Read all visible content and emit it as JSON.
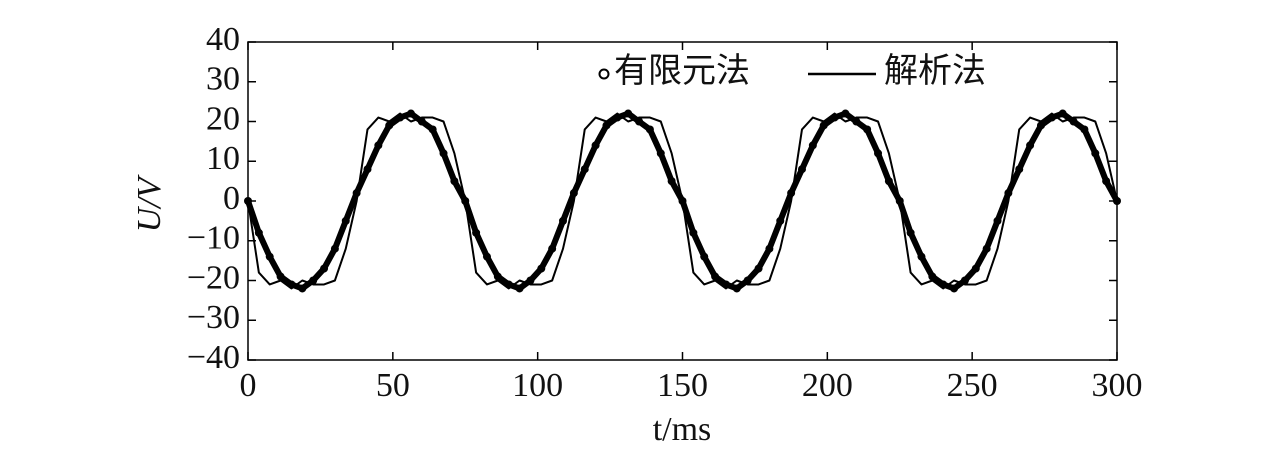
{
  "chart_data": {
    "type": "line",
    "x_label": "t/ms",
    "y_label": "U/V",
    "x": [
      0,
      3.75,
      7.5,
      11.25,
      15,
      18.75,
      22.5,
      26.25,
      30,
      33.75,
      37.5,
      41.25,
      45,
      48.75,
      52.5,
      56.25,
      60,
      63.75,
      67.5,
      71.25,
      75,
      78.75,
      82.5,
      86.25,
      90,
      93.75,
      97.5,
      101.25,
      105,
      108.75,
      112.5,
      116.25,
      120,
      123.75,
      127.5,
      131.25,
      135,
      138.75,
      142.5,
      146.25,
      150,
      153.75,
      157.5,
      161.25,
      165,
      168.75,
      172.5,
      176.25,
      180,
      183.75,
      187.5,
      191.25,
      195,
      198.75,
      202.5,
      206.25,
      210,
      213.75,
      217.5,
      221.25,
      225,
      228.75,
      232.5,
      236.25,
      240,
      243.75,
      247.5,
      251.25,
      255,
      258.75,
      262.5,
      266.25,
      270,
      273.75,
      277.5,
      281.25,
      285,
      288.75,
      292.5,
      296.25,
      300
    ],
    "series": [
      {
        "name": "有限元法",
        "color": "#000000",
        "style": "markers",
        "values": [
          0,
          -8,
          -14,
          -19,
          -21,
          -22,
          -20,
          -17,
          -12,
          -5,
          2,
          8,
          14,
          19,
          21,
          22,
          20,
          18,
          12,
          5,
          0,
          -8,
          -14,
          -19,
          -21,
          -22,
          -20,
          -17,
          -12,
          -5,
          2,
          8,
          14,
          19,
          21,
          22,
          20,
          18,
          12,
          5,
          0,
          -8,
          -14,
          -19,
          -21,
          -22,
          -20,
          -17,
          -12,
          -5,
          2,
          8,
          14,
          19,
          21,
          22,
          20,
          18,
          12,
          5,
          0,
          -8,
          -14,
          -19,
          -21,
          -22,
          -20,
          -17,
          -12,
          -5,
          2,
          8,
          14,
          19,
          21,
          22,
          20,
          18,
          12,
          5,
          0
        ]
      },
      {
        "name": "解析法",
        "color": "#000000",
        "style": "line",
        "values": [
          0,
          -18,
          -21,
          -20,
          -22,
          -20,
          -21,
          -21,
          -20,
          -12,
          0,
          18,
          21,
          20,
          22,
          20,
          21,
          21,
          20,
          12,
          0,
          -18,
          -21,
          -20,
          -22,
          -20,
          -21,
          -21,
          -20,
          -12,
          0,
          18,
          21,
          20,
          22,
          20,
          21,
          21,
          20,
          12,
          0,
          -18,
          -21,
          -20,
          -22,
          -20,
          -21,
          -21,
          -20,
          -12,
          0,
          18,
          21,
          20,
          22,
          20,
          21,
          21,
          20,
          12,
          0,
          -18,
          -21,
          -20,
          -22,
          -20,
          -21,
          -21,
          -20,
          -12,
          0,
          18,
          21,
          20,
          22,
          20,
          21,
          21,
          20,
          12,
          0
        ]
      }
    ],
    "xlim": [
      0,
      300
    ],
    "xticks": [
      0,
      50,
      100,
      150,
      200,
      250,
      300
    ],
    "ylim": [
      -40,
      40
    ],
    "yticks": [
      {
        "value": -40,
        "label": "−40"
      },
      {
        "value": -30,
        "label": "−30"
      },
      {
        "value": -20,
        "label": "−20"
      },
      {
        "value": -10,
        "label": "−10"
      },
      0,
      10,
      20,
      30,
      40
    ],
    "legend": "top-right",
    "grid": false
  }
}
